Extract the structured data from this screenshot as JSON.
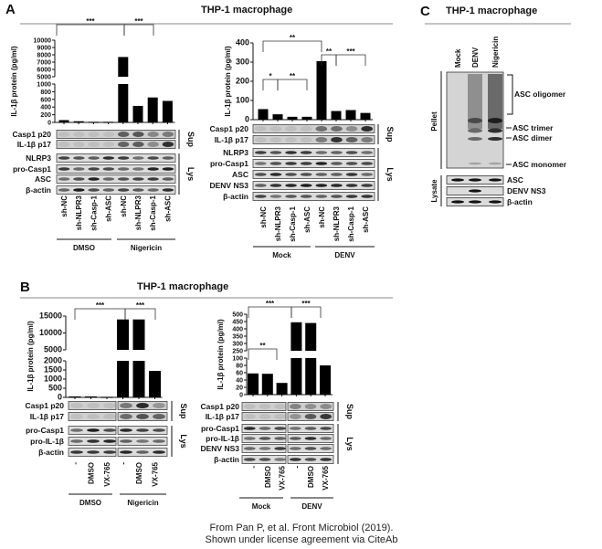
{
  "panels": {
    "A": {
      "letter": "A",
      "title": "THP-1 macrophage"
    },
    "B": {
      "letter": "B",
      "title": "THP-1 macrophage"
    },
    "C": {
      "letter": "C",
      "title": "THP-1 macrophage"
    }
  },
  "ylabel": "IL-1β protein (pg/ml)",
  "chart_data": [
    {
      "id": "A-left",
      "type": "bar",
      "ylabel": "IL-1β protein (pg/ml)",
      "categories": [
        "sh-NC",
        "sh-NLPR3",
        "sh-Casp-1",
        "sh-ASC",
        "sh-NC",
        "sh-NLPR3",
        "sh-Casp-1",
        "sh-ASC"
      ],
      "groups": [
        "DMSO",
        "Nigericin"
      ],
      "values": [
        60,
        30,
        15,
        15,
        7700,
        430,
        650,
        560
      ],
      "ticks": [
        0,
        200,
        400,
        600,
        800,
        1000,
        5000,
        6000,
        7000,
        8000,
        9000,
        10000
      ],
      "axis_break": [
        1000,
        5000
      ],
      "ylim": [
        0,
        10000
      ],
      "significance": [
        "***",
        "***"
      ]
    },
    {
      "id": "A-right",
      "type": "bar",
      "ylabel": "IL-1β protein (pg/ml)",
      "categories": [
        "sh-NC",
        "sh-NLPR3",
        "sh-Casp-1",
        "sh-ASC",
        "sh-NC",
        "sh-NLPR3",
        "sh-Casp-1",
        "sh-ASC"
      ],
      "groups": [
        "Mock",
        "DENV"
      ],
      "values": [
        55,
        28,
        15,
        15,
        305,
        45,
        50,
        35
      ],
      "ticks": [
        0,
        100,
        200,
        300,
        400
      ],
      "ylim": [
        0,
        400
      ],
      "significance": [
        "**",
        "*",
        "**",
        "**",
        "***"
      ]
    },
    {
      "id": "B-left",
      "type": "bar",
      "ylabel": "IL-1β protein (pg/ml)",
      "categories": [
        "-",
        "DMSO",
        "VX-765",
        "-",
        "DMSO",
        "VX-765"
      ],
      "groups": [
        "DMSO",
        "Nigericin"
      ],
      "values": [
        50,
        50,
        30,
        14000,
        14000,
        1450
      ],
      "ticks": [
        0,
        500,
        1000,
        1500,
        2000,
        5000,
        10000,
        15000
      ],
      "axis_break": [
        2000,
        5000
      ],
      "ylim": [
        0,
        15000
      ],
      "significance": [
        "***",
        "***"
      ]
    },
    {
      "id": "B-right",
      "type": "bar",
      "ylabel": "IL-1β protein (pg/ml)",
      "categories": [
        "-",
        "DMSO",
        "VX-765",
        "-",
        "DMSO",
        "VX-765"
      ],
      "groups": [
        "Mock",
        "DENV"
      ],
      "values": [
        58,
        57,
        32,
        445,
        440,
        80
      ],
      "ticks": [
        0,
        20,
        40,
        60,
        80,
        100,
        250,
        300,
        350,
        400,
        450,
        500
      ],
      "axis_break": [
        100,
        250
      ],
      "ylim": [
        0,
        500
      ],
      "significance": [
        "***",
        "**",
        "***"
      ]
    }
  ],
  "blots": {
    "A_left": [
      "Casp1 p20",
      "IL-1β p17",
      "NLRP3",
      "pro-Casp1",
      "ASC",
      "β-actin"
    ],
    "A_right": [
      "Casp1 p20",
      "IL-1β p17",
      "NLRP3",
      "pro-Casp1",
      "ASC",
      "DENV NS3",
      "β-actin"
    ],
    "B_left": [
      "Casp1 p20",
      "IL-1β p17",
      "pro-Casp1",
      "pro-IL-1β",
      "β-actin"
    ],
    "B_right": [
      "Casp1 p20",
      "IL-1β p17",
      "pro-Casp1",
      "pro-IL-1β",
      "DENV NS3",
      "β-actin"
    ],
    "sup": "Sup",
    "lys": "Lys"
  },
  "panelC": {
    "lanes": [
      "Mock",
      "DENV",
      "Nigericin"
    ],
    "pellet": "Pellet",
    "lysate": "Lysate",
    "bands": [
      "ASC oligomer",
      "ASC trimer",
      "ASC dimer",
      "ASC monomer"
    ],
    "lysate_rows": [
      "ASC",
      "DENV NS3",
      "β-actin"
    ]
  },
  "footer": {
    "line1": "From Pan P, et al. Front Microbiol (2019).",
    "line2": "Shown under license agreement via CiteAb"
  }
}
